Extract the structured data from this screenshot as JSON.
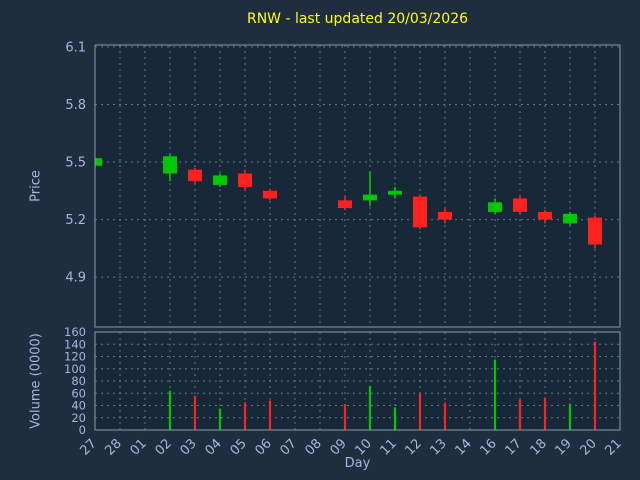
{
  "colors": {
    "background": "#1f2e3e",
    "plot_background": "#172839",
    "grid": "#6f8196",
    "border": "#8a9bb0",
    "axis_text": "#a6b5e2",
    "title": "#ffff00",
    "up": "#00c800",
    "down": "#ff2020"
  },
  "chart_data": {
    "type": "candlestick",
    "title": "RNW - last updated 20/03/2026",
    "xlabel": "Day",
    "grid": "dotted",
    "legend": "none",
    "panels": {
      "price": {
        "ylabel": "Price",
        "ylim": [
          4.64,
          6.11
        ],
        "yticks": [
          4.9,
          5.2,
          5.5,
          5.8,
          6.1
        ]
      },
      "volume": {
        "ylabel": "Volume (0000)",
        "ylim": [
          0,
          160
        ],
        "yticks": [
          0,
          20,
          40,
          60,
          80,
          100,
          120,
          140,
          160
        ]
      }
    },
    "categories": [
      "27",
      "28",
      "01",
      "02",
      "03",
      "04",
      "05",
      "06",
      "07",
      "08",
      "09",
      "10",
      "11",
      "12",
      "13",
      "14",
      "16",
      "17",
      "18",
      "19",
      "20",
      "21"
    ],
    "candles": [
      {
        "day": "27",
        "open": 5.48,
        "high": 5.52,
        "low": 5.47,
        "close": 5.52,
        "volume": 0
      },
      null,
      null,
      {
        "day": "02",
        "open": 5.44,
        "high": 5.54,
        "low": 5.4,
        "close": 5.53,
        "volume": 64
      },
      {
        "day": "03",
        "open": 5.46,
        "high": 5.47,
        "low": 5.39,
        "close": 5.4,
        "volume": 56
      },
      {
        "day": "04",
        "open": 5.38,
        "high": 5.44,
        "low": 5.37,
        "close": 5.43,
        "volume": 35
      },
      {
        "day": "05",
        "open": 5.44,
        "high": 5.46,
        "low": 5.35,
        "close": 5.37,
        "volume": 45
      },
      {
        "day": "06",
        "open": 5.35,
        "high": 5.36,
        "low": 5.3,
        "close": 5.31,
        "volume": 48
      },
      null,
      null,
      {
        "day": "09",
        "open": 5.3,
        "high": 5.32,
        "low": 5.25,
        "close": 5.26,
        "volume": 42
      },
      {
        "day": "10",
        "open": 5.3,
        "high": 5.45,
        "low": 5.27,
        "close": 5.33,
        "volume": 72
      },
      {
        "day": "11",
        "open": 5.33,
        "high": 5.37,
        "low": 5.31,
        "close": 5.35,
        "volume": 37
      },
      {
        "day": "12",
        "open": 5.32,
        "high": 5.33,
        "low": 5.15,
        "close": 5.16,
        "volume": 59
      },
      {
        "day": "13",
        "open": 5.24,
        "high": 5.26,
        "low": 5.18,
        "close": 5.2,
        "volume": 45
      },
      null,
      {
        "day": "16",
        "open": 5.24,
        "high": 5.31,
        "low": 5.23,
        "close": 5.29,
        "volume": 115
      },
      {
        "day": "17",
        "open": 5.31,
        "high": 5.33,
        "low": 5.23,
        "close": 5.24,
        "volume": 50
      },
      {
        "day": "18",
        "open": 5.24,
        "high": 5.25,
        "low": 5.18,
        "close": 5.2,
        "volume": 53
      },
      {
        "day": "19",
        "open": 5.18,
        "high": 5.24,
        "low": 5.17,
        "close": 5.23,
        "volume": 43
      },
      {
        "day": "20",
        "open": 5.21,
        "high": 5.22,
        "low": 5.05,
        "close": 5.07,
        "volume": 144
      },
      null
    ]
  }
}
